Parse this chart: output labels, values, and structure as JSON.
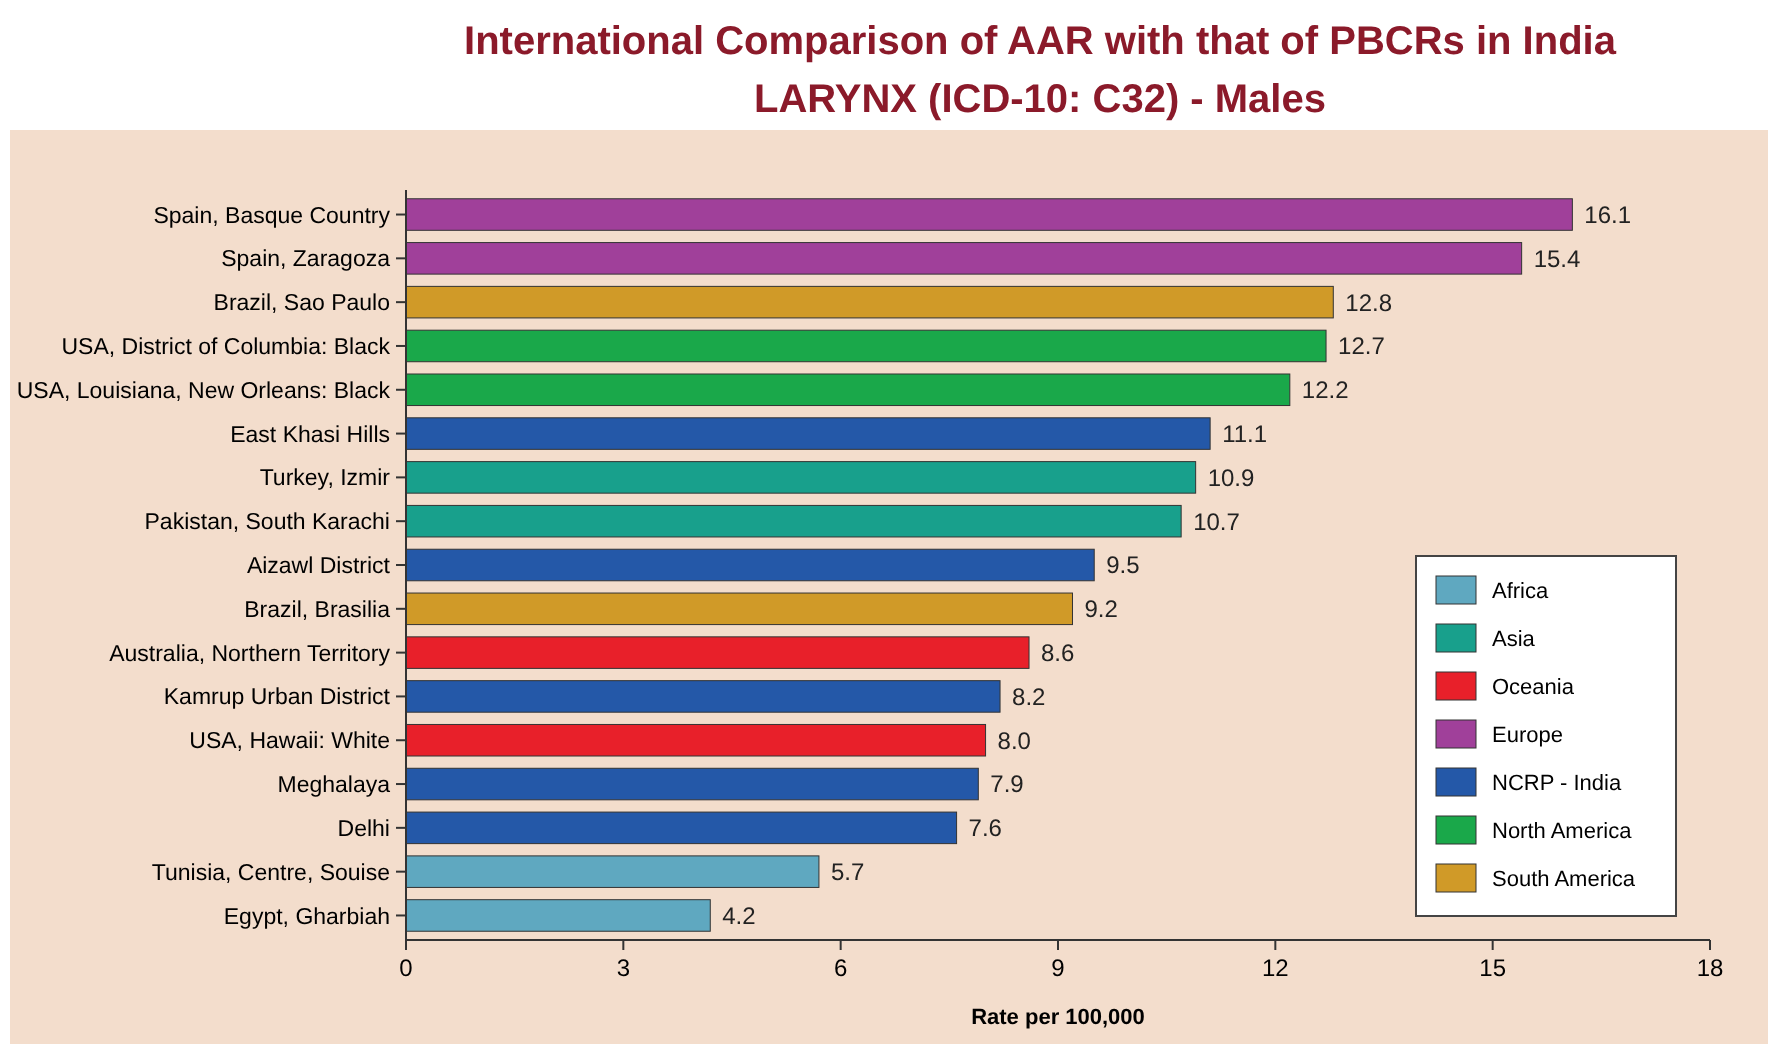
{
  "chart_data": {
    "type": "bar",
    "orientation": "horizontal",
    "title": "International Comparison of AAR with that of PBCRs in India",
    "subtitle": "LARYNX (ICD-10: C32) - Males",
    "xlabel": "Rate per 100,000",
    "categories": [
      "Spain, Basque Country",
      "Spain, Zaragoza",
      "Brazil, Sao Paulo",
      "USA, District of Columbia: Black",
      "USA, Louisiana, New Orleans: Black",
      "East Khasi Hills",
      "Turkey, Izmir",
      "Pakistan, South Karachi",
      "Aizawl District",
      "Brazil, Brasilia",
      "Australia, Northern Territory",
      "Kamrup Urban District",
      "USA, Hawaii: White",
      "Meghalaya",
      "Delhi",
      "Tunisia, Centre, Souise",
      "Egypt, Gharbiah"
    ],
    "series": [
      {
        "name": "Africa",
        "color": "#5fa8c0",
        "values": [
          null,
          null,
          null,
          null,
          null,
          null,
          null,
          null,
          null,
          null,
          null,
          null,
          null,
          null,
          null,
          5.7,
          4.2
        ],
        "value_labels": [
          null,
          null,
          null,
          null,
          null,
          null,
          null,
          null,
          null,
          null,
          null,
          null,
          null,
          null,
          null,
          "5.7",
          "4.2"
        ]
      },
      {
        "name": "Asia",
        "color": "#18a08c",
        "values": [
          null,
          null,
          null,
          null,
          null,
          null,
          10.9,
          10.7,
          null,
          null,
          null,
          null,
          null,
          null,
          null,
          null,
          null
        ],
        "value_labels": [
          null,
          null,
          null,
          null,
          null,
          null,
          "10.9",
          "10.7",
          null,
          null,
          null,
          null,
          null,
          null,
          null,
          null,
          null
        ]
      },
      {
        "name": "Oceania",
        "color": "#e8202a",
        "values": [
          null,
          null,
          null,
          null,
          null,
          null,
          null,
          null,
          null,
          null,
          8.6,
          null,
          8.0,
          null,
          null,
          null,
          null
        ],
        "value_labels": [
          null,
          null,
          null,
          null,
          null,
          null,
          null,
          null,
          null,
          null,
          "8.6",
          null,
          "8.0",
          null,
          null,
          null,
          null
        ]
      },
      {
        "name": "Europe",
        "color": "#a0409a",
        "values": [
          16.1,
          15.4,
          null,
          null,
          null,
          null,
          null,
          null,
          null,
          null,
          null,
          null,
          null,
          null,
          null,
          null,
          null
        ],
        "value_labels": [
          "16.1",
          "15.4",
          null,
          null,
          null,
          null,
          null,
          null,
          null,
          null,
          null,
          null,
          null,
          null,
          null,
          null,
          null
        ]
      },
      {
        "name": "NCRP - India",
        "color": "#2458a8",
        "values": [
          null,
          null,
          null,
          null,
          null,
          11.1,
          null,
          null,
          9.5,
          null,
          null,
          8.2,
          null,
          7.9,
          7.6,
          null,
          null
        ],
        "value_labels": [
          null,
          null,
          null,
          null,
          null,
          "11.1",
          null,
          null,
          "9.5",
          null,
          null,
          "8.2",
          null,
          "7.9",
          "7.6",
          null,
          null
        ]
      },
      {
        "name": "North America",
        "color": "#1aa84a",
        "values": [
          null,
          null,
          null,
          12.7,
          12.2,
          null,
          null,
          null,
          null,
          null,
          null,
          null,
          null,
          null,
          null,
          null,
          null
        ],
        "value_labels": [
          null,
          null,
          null,
          "12.7",
          "12.2",
          null,
          null,
          null,
          null,
          null,
          null,
          null,
          null,
          null,
          null,
          null,
          null
        ]
      },
      {
        "name": "South America",
        "color": "#d09a28",
        "values": [
          null,
          null,
          12.8,
          null,
          null,
          null,
          null,
          null,
          null,
          9.2,
          null,
          null,
          null,
          null,
          null,
          null,
          null
        ],
        "value_labels": [
          null,
          null,
          "12.8",
          null,
          null,
          null,
          null,
          null,
          null,
          "9.2",
          null,
          null,
          null,
          null,
          null,
          null,
          null
        ]
      }
    ],
    "xlim": [
      0,
      18
    ],
    "xticks": [
      0,
      3,
      6,
      9,
      12,
      15,
      18
    ],
    "legend": "bottom right"
  }
}
